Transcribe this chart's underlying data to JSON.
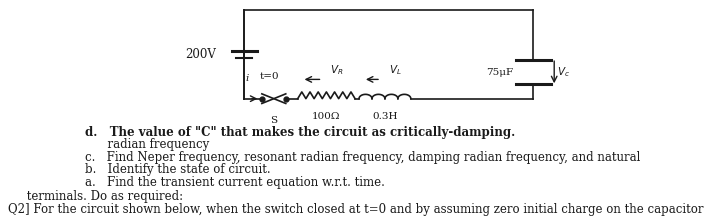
{
  "bg_color": "#ffffff",
  "text_color": "#1a1a1a",
  "title_line1": "Q2] For the circuit shown below, when the switch closed at t=0 and by assuming zero initial charge on the capacitor",
  "title_line2": "     terminals. Do as required:",
  "item_a": "a.   Find the transient current equation w.r.t. time.",
  "item_b": "b.   Identify the state of circuit.",
  "item_c1": "c.   Find Neper frequency, resonant radian frequency, damping radian frequency, and natural",
  "item_c2": "      radian frequency",
  "item_d": "d.   The value of \"C\" that makes the circuit as critically-damping.",
  "font_size_main": 8.5,
  "voltage_label": "200V",
  "switch_label": "t=0",
  "s_label": "S",
  "r_label": "100Ω",
  "l_label": "0.3H",
  "c_label": "75μF",
  "i_label": "i"
}
